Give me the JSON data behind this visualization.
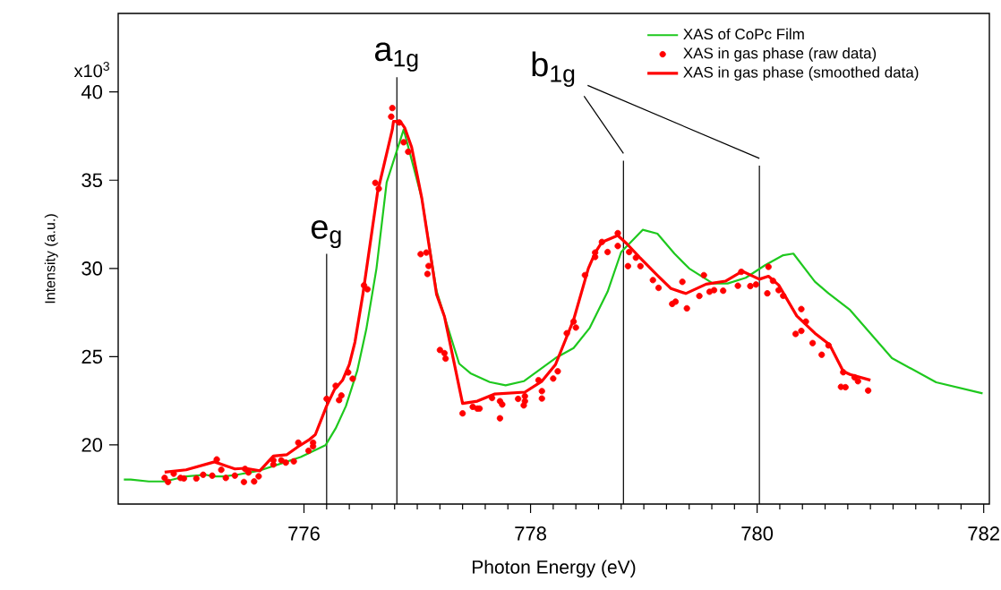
{
  "chart_data": {
    "type": "line",
    "xlabel": "Photon Energy (eV)",
    "ylabel": "Intensity (a.u.)",
    "xlim": [
      774.36,
      782.05
    ],
    "ylim": [
      16.65,
      44.45
    ],
    "xticks": [
      776,
      778,
      780,
      782
    ],
    "yticks": [
      20,
      25,
      30,
      35,
      40
    ],
    "annotations": [
      "x10$^{3}$"
    ],
    "legend": "top right",
    "series": [
      {
        "name": "XAS of CoPc Film",
        "color": "#1ec81e",
        "x": [
          774.41,
          774.47,
          774.63,
          774.77,
          774.96,
          775.13,
          775.2,
          775.3,
          775.41,
          775.61,
          775.8,
          775.97,
          776.19,
          776.28,
          776.37,
          776.47,
          776.55,
          776.64,
          776.73,
          776.88,
          777.04,
          777.17,
          777.37,
          777.47,
          777.64,
          777.78,
          777.94,
          778.23,
          778.38,
          778.52,
          778.68,
          778.8,
          778.99,
          779.12,
          779.27,
          779.4,
          779.61,
          779.74,
          779.9,
          780.07,
          780.23,
          780.32,
          780.51,
          780.63,
          780.82,
          781.19,
          781.58,
          781.99
        ],
        "values": [
          18.04,
          18.04,
          17.93,
          17.93,
          18.22,
          18.31,
          18.22,
          18.22,
          18.31,
          18.55,
          18.95,
          19.31,
          19.98,
          20.94,
          22.2,
          24.2,
          26.55,
          30.0,
          34.88,
          37.87,
          33.98,
          28.73,
          24.6,
          24.06,
          23.56,
          23.38,
          23.61,
          24.96,
          25.49,
          26.61,
          28.68,
          30.93,
          32.19,
          31.97,
          30.84,
          30.0,
          29.15,
          29.15,
          29.47,
          30.18,
          30.75,
          30.84,
          29.25,
          28.59,
          27.65,
          24.92,
          23.55,
          22.92
        ]
      },
      {
        "name": "XAS in gas phase (raw data)",
        "type": "scatter",
        "marker": "circle",
        "color": "#ff0000",
        "x": [
          774.77,
          774.8,
          774.85,
          774.91,
          774.94,
          775.05,
          775.11,
          775.19,
          775.23,
          775.27,
          775.31,
          775.39,
          775.47,
          775.48,
          775.51,
          775.56,
          775.6,
          775.73,
          775.73,
          775.8,
          775.84,
          775.91,
          775.95,
          776.04,
          776.08,
          776.08,
          776.2,
          776.28,
          776.31,
          776.33,
          776.39,
          776.43,
          776.53,
          776.56,
          776.63,
          776.66,
          776.77,
          776.78,
          776.84,
          776.88,
          776.92,
          777.03,
          777.08,
          777.1,
          777.09,
          777.2,
          777.24,
          777.25,
          777.4,
          777.49,
          777.53,
          777.55,
          777.66,
          777.73,
          777.73,
          777.75,
          777.89,
          777.95,
          777.95,
          777.94,
          778.07,
          778.1,
          778.1,
          778.2,
          778.24,
          778.32,
          778.38,
          778.4,
          778.48,
          778.57,
          778.57,
          778.63,
          778.68,
          778.77,
          778.77,
          778.87,
          778.93,
          778.86,
          778.97,
          779.08,
          779.13,
          779.25,
          779.28,
          779.34,
          779.38,
          779.49,
          779.53,
          779.58,
          779.62,
          779.7,
          779.83,
          779.86,
          779.94,
          779.99,
          780.09,
          780.1,
          780.14,
          780.19,
          780.23,
          780.34,
          780.39,
          780.39,
          780.43,
          780.49,
          780.57,
          780.63,
          780.74,
          780.78,
          780.76,
          780.86,
          780.89,
          780.98
        ],
        "values": [
          18.13,
          17.9,
          18.37,
          18.13,
          18.1,
          18.1,
          18.31,
          18.26,
          19.18,
          18.59,
          18.13,
          18.26,
          17.9,
          18.64,
          18.44,
          17.93,
          18.22,
          19.13,
          18.89,
          19.13,
          19.0,
          19.07,
          20.13,
          19.67,
          20.13,
          19.92,
          22.61,
          23.35,
          22.54,
          22.8,
          24.11,
          23.75,
          29.04,
          28.82,
          34.85,
          34.52,
          38.6,
          39.09,
          38.27,
          37.15,
          36.61,
          30.81,
          30.9,
          30.14,
          29.69,
          25.38,
          25.2,
          24.89,
          21.79,
          22.16,
          22.06,
          22.06,
          22.66,
          21.51,
          22.48,
          22.29,
          22.61,
          22.76,
          22.48,
          22.24,
          23.67,
          23.05,
          22.63,
          23.76,
          24.17,
          26.33,
          26.99,
          26.65,
          29.62,
          30.65,
          30.9,
          31.5,
          30.93,
          32.0,
          31.27,
          30.93,
          30.61,
          30.13,
          30.13,
          29.34,
          28.9,
          27.99,
          28.12,
          29.24,
          27.74,
          28.44,
          29.62,
          28.68,
          28.77,
          28.74,
          29.02,
          29.81,
          29.0,
          29.09,
          28.59,
          30.09,
          29.3,
          28.77,
          28.45,
          26.29,
          27.7,
          26.46,
          26.99,
          25.77,
          25.11,
          25.64,
          23.29,
          23.27,
          24.12,
          23.83,
          23.61,
          23.08
        ]
      },
      {
        "name": "XAS in gas phase (smoothed data)",
        "color": "#ff0000",
        "x": [
          774.77,
          774.96,
          775.21,
          775.39,
          775.48,
          775.61,
          775.73,
          775.85,
          775.95,
          776.04,
          776.1,
          776.2,
          776.27,
          776.34,
          776.4,
          776.45,
          776.52,
          776.65,
          776.78,
          776.79,
          776.85,
          776.89,
          776.95,
          777.04,
          777.17,
          777.24,
          777.4,
          777.53,
          777.68,
          777.95,
          778.1,
          778.22,
          778.38,
          778.51,
          778.57,
          778.63,
          778.77,
          778.85,
          778.96,
          779.12,
          779.24,
          779.37,
          779.55,
          779.72,
          779.87,
          780.02,
          780.1,
          780.19,
          780.35,
          780.51,
          780.64,
          780.76,
          780.82,
          781.0
        ],
        "values": [
          18.46,
          18.59,
          19.04,
          18.64,
          18.68,
          18.53,
          19.37,
          19.45,
          19.91,
          20.27,
          20.58,
          22.21,
          23.15,
          23.66,
          24.56,
          25.83,
          28.54,
          34.34,
          37.87,
          38.33,
          38.33,
          37.96,
          36.88,
          33.98,
          28.54,
          27.28,
          22.35,
          22.48,
          22.88,
          22.99,
          23.61,
          24.55,
          27.09,
          30.0,
          30.89,
          31.49,
          31.87,
          31.4,
          30.65,
          29.61,
          28.86,
          28.58,
          29.11,
          29.28,
          29.84,
          29.39,
          29.56,
          29.06,
          27.31,
          26.33,
          25.68,
          24.17,
          23.99,
          23.67
        ]
      }
    ],
    "ref_lines": [
      {
        "axis": "x",
        "value": 776.2,
        "label": "e$_{g}$"
      },
      {
        "axis": "x",
        "value": 776.82,
        "label": "a$_{1g}$"
      },
      {
        "axis": "x",
        "value": 778.82,
        "label": "b$_{1g}$"
      },
      {
        "axis": "x",
        "value": 780.02,
        "label": null
      }
    ]
  }
}
